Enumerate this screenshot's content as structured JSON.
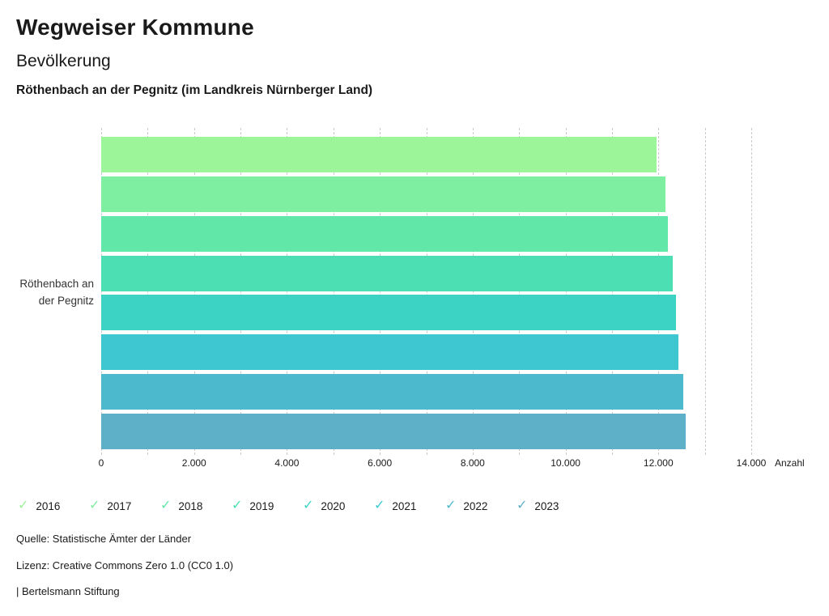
{
  "header": {
    "title": "Wegweiser Kommune",
    "subtitle": "Bevölkerung",
    "location": "Röthenbach an der Pegnitz (im Landkreis Nürnberger Land)"
  },
  "chart_data": {
    "type": "bar",
    "orientation": "horizontal",
    "category": "Röthenbach an der Pegnitz",
    "category_lines": [
      "Röthenbach an",
      "der Pegnitz"
    ],
    "series": [
      {
        "name": "2016",
        "value": 11960,
        "color": "#9df59a"
      },
      {
        "name": "2017",
        "value": 12150,
        "color": "#7eeea1"
      },
      {
        "name": "2018",
        "value": 12210,
        "color": "#61e7a8"
      },
      {
        "name": "2019",
        "value": 12310,
        "color": "#4cdfb3"
      },
      {
        "name": "2020",
        "value": 12380,
        "color": "#3dd3c4"
      },
      {
        "name": "2021",
        "value": 12430,
        "color": "#3fc7d1"
      },
      {
        "name": "2022",
        "value": 12540,
        "color": "#4db9cc"
      },
      {
        "name": "2023",
        "value": 12580,
        "color": "#5eb0c8"
      }
    ],
    "xlabel": "Anzahl",
    "xlim": [
      0,
      14000
    ],
    "grid_interval": 1000,
    "grid_style": "dashed",
    "legend_position": "bottom",
    "legend_check_icon": "✓",
    "x_ticks": [
      {
        "value": 0,
        "label": "0"
      },
      {
        "value": 2000,
        "label": "2.000"
      },
      {
        "value": 4000,
        "label": "4.000"
      },
      {
        "value": 6000,
        "label": "6.000"
      },
      {
        "value": 8000,
        "label": "8.000"
      },
      {
        "value": 10000,
        "label": "10.000"
      },
      {
        "value": 12000,
        "label": "12.000"
      },
      {
        "value": 14000,
        "label": "14.000"
      }
    ]
  },
  "footer": {
    "source": "Quelle: Statistische Ämter der Länder",
    "license": "Lizenz: Creative Commons Zero 1.0 (CC0 1.0)",
    "attribution": "| Bertelsmann Stiftung"
  }
}
